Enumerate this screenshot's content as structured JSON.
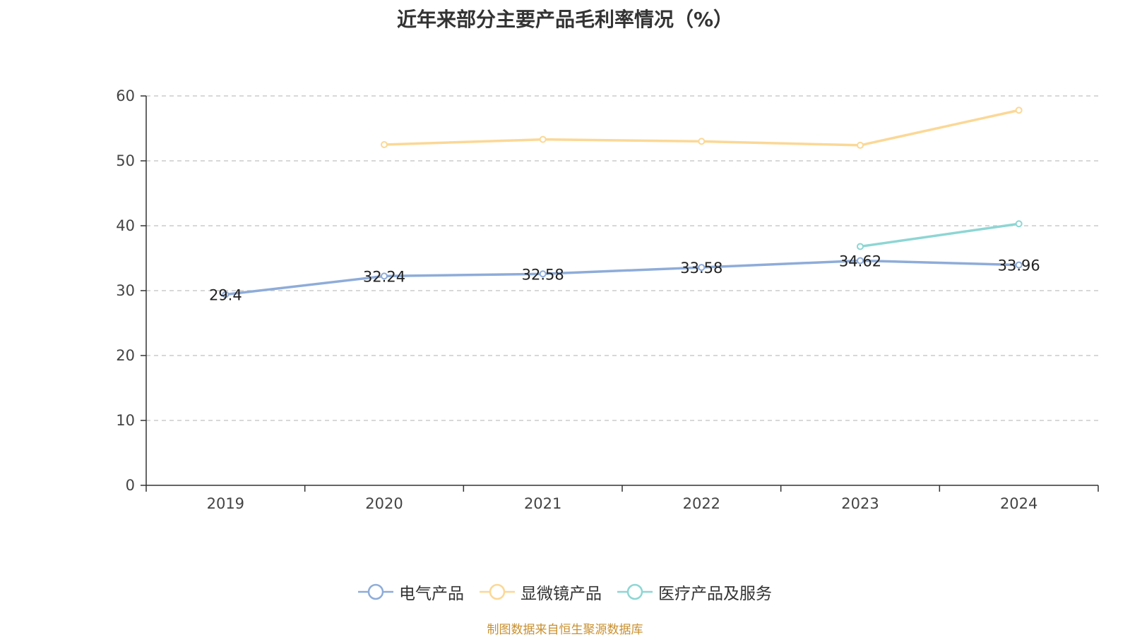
{
  "chart_data": {
    "type": "line",
    "title": "近年来部分主要产品毛利率情况（%）",
    "categories": [
      "2019",
      "2020",
      "2021",
      "2022",
      "2023",
      "2024"
    ],
    "ylim": [
      0,
      60
    ],
    "yticks": [
      "0",
      "10",
      "20",
      "30",
      "40",
      "50",
      "60"
    ],
    "grid": true,
    "legend_position": "bottom",
    "series": [
      {
        "name": "电气产品",
        "color": "#8eacd9",
        "values": [
          29.4,
          32.24,
          32.58,
          33.58,
          34.62,
          33.96
        ],
        "labels": [
          "29.4",
          "32.24",
          "32.58",
          "33.58",
          "34.62",
          "33.96"
        ]
      },
      {
        "name": "显微镜产品",
        "color": "#fbd896",
        "values": [
          null,
          52.5,
          53.3,
          53.0,
          52.4,
          57.8
        ]
      },
      {
        "name": "医疗产品及服务",
        "color": "#8dd6d4",
        "values": [
          null,
          null,
          null,
          null,
          36.8,
          40.3
        ]
      }
    ]
  },
  "source_note": "制图数据来自恒生聚源数据库"
}
